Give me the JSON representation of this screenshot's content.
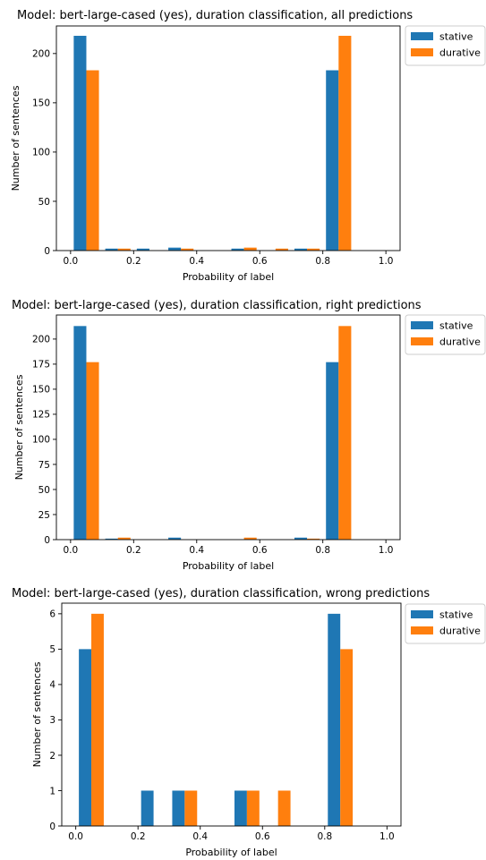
{
  "colors": {
    "stative": "#1f77b4",
    "durative": "#ff7f0e"
  },
  "chart_data": [
    {
      "type": "bar",
      "title": "Model: bert-large-cased (yes), duration classification, all predictions",
      "xlabel": "Probability of label",
      "ylabel": "Number of sentences",
      "xlim": [
        -0.045,
        1.045
      ],
      "ylim": [
        0,
        228
      ],
      "xticks": [
        0.0,
        0.2,
        0.4,
        0.6,
        0.8,
        1.0
      ],
      "xtick_labels": [
        "0.0",
        "0.2",
        "0.4",
        "0.6",
        "0.8",
        "1.0"
      ],
      "yticks": [
        0,
        50,
        100,
        150,
        200
      ],
      "ytick_labels": [
        "0",
        "50",
        "100",
        "150",
        "200"
      ],
      "bin_edges": [
        0.0,
        0.1,
        0.2,
        0.3,
        0.4,
        0.5,
        0.6,
        0.7,
        0.8,
        0.9,
        1.0
      ],
      "legend_position": "outside-top-right",
      "series": [
        {
          "name": "stative",
          "values": [
            218,
            2,
            2,
            3,
            0,
            2,
            0,
            2,
            183,
            0
          ]
        },
        {
          "name": "durative",
          "values": [
            183,
            2,
            0,
            2,
            0,
            3,
            2,
            2,
            218,
            0
          ]
        }
      ]
    },
    {
      "type": "bar",
      "title": "Model: bert-large-cased (yes), duration classification, right predictions",
      "xlabel": "Probability of label",
      "ylabel": "Number of sentences",
      "xlim": [
        -0.045,
        1.045
      ],
      "ylim": [
        0,
        224
      ],
      "xticks": [
        0.0,
        0.2,
        0.4,
        0.6,
        0.8,
        1.0
      ],
      "xtick_labels": [
        "0.0",
        "0.2",
        "0.4",
        "0.6",
        "0.8",
        "1.0"
      ],
      "yticks": [
        0,
        25,
        50,
        75,
        100,
        125,
        150,
        175,
        200
      ],
      "ytick_labels": [
        "0",
        "25",
        "50",
        "75",
        "100",
        "125",
        "150",
        "175",
        "200"
      ],
      "bin_edges": [
        0.0,
        0.1,
        0.2,
        0.3,
        0.4,
        0.5,
        0.6,
        0.7,
        0.8,
        0.9,
        1.0
      ],
      "legend_position": "outside-top-right",
      "series": [
        {
          "name": "stative",
          "values": [
            213,
            1,
            0,
            2,
            0,
            0,
            0,
            2,
            177,
            0
          ]
        },
        {
          "name": "durative",
          "values": [
            177,
            2,
            0,
            0,
            0,
            2,
            0,
            1,
            213,
            0
          ]
        }
      ]
    },
    {
      "type": "bar",
      "title": "Model: bert-large-cased (yes), duration classification, wrong predictions",
      "xlabel": "Probability of label",
      "ylabel": "Number of sentences",
      "xlim": [
        -0.045,
        1.045
      ],
      "ylim": [
        0,
        6.3
      ],
      "xticks": [
        0.0,
        0.2,
        0.4,
        0.6,
        0.8,
        1.0
      ],
      "xtick_labels": [
        "0.0",
        "0.2",
        "0.4",
        "0.6",
        "0.8",
        "1.0"
      ],
      "yticks": [
        0,
        1,
        2,
        3,
        4,
        5,
        6
      ],
      "ytick_labels": [
        "0",
        "1",
        "2",
        "3",
        "4",
        "5",
        "6"
      ],
      "bin_edges": [
        0.0,
        0.1,
        0.2,
        0.3,
        0.4,
        0.5,
        0.6,
        0.7,
        0.8,
        0.9,
        1.0
      ],
      "legend_position": "outside-top-right",
      "series": [
        {
          "name": "stative",
          "values": [
            5,
            0,
            1,
            1,
            0,
            1,
            0,
            0,
            6,
            0
          ]
        },
        {
          "name": "durative",
          "values": [
            6,
            0,
            0,
            1,
            0,
            1,
            1,
            0,
            5,
            0
          ]
        }
      ]
    }
  ]
}
